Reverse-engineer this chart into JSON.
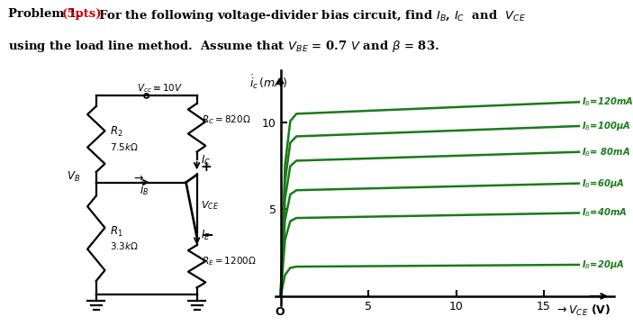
{
  "background_color": "#ffffff",
  "graph_color": "#1a7a1a",
  "text_color": "#000000",
  "red_color": "#cc0000",
  "x_ticks": [
    0,
    5,
    10,
    15
  ],
  "y_ticks": [
    5,
    10
  ],
  "xlim": [
    -0.3,
    19
  ],
  "ylim": [
    -0.5,
    13
  ],
  "curves": [
    {
      "ic_sat": 10.5,
      "label": "I$_B$=120mA"
    },
    {
      "ic_sat": 9.2,
      "label": "I$_B$=100μA"
    },
    {
      "ic_sat": 7.8,
      "label": "I$_B$= 80mA"
    },
    {
      "ic_sat": 6.1,
      "label": "I$_B$=60μA"
    },
    {
      "ic_sat": 4.5,
      "label": "I$_B$=40mA"
    },
    {
      "ic_sat": 1.7,
      "label": "I$_B$=20μA"
    }
  ],
  "vce_knee": 0.9,
  "x_end": 17.0
}
